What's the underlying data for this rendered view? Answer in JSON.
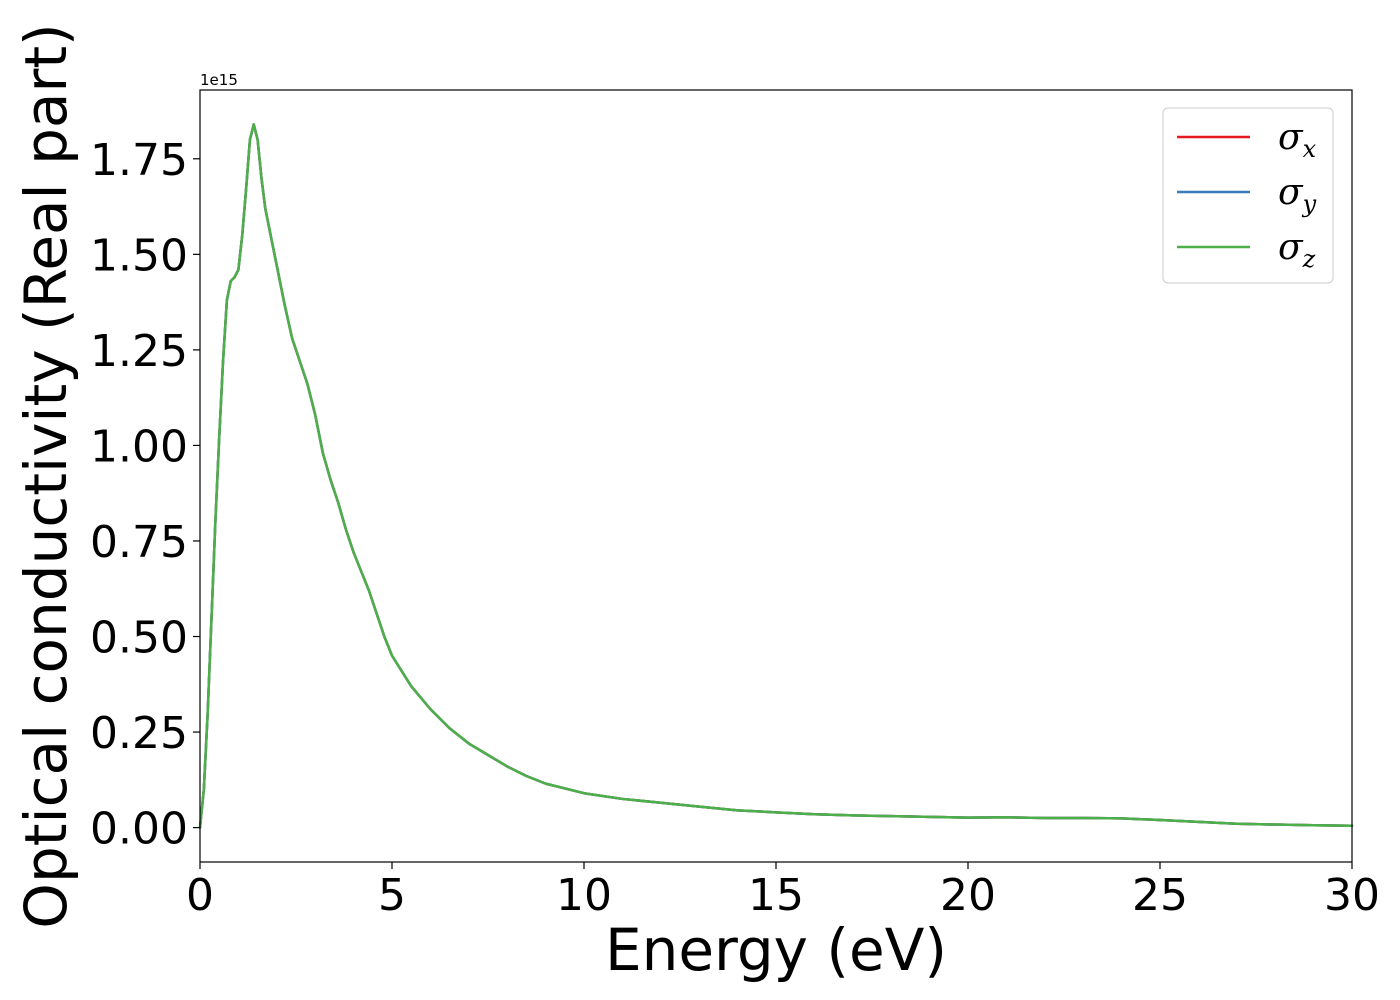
{
  "chart_data": {
    "type": "line",
    "title": "",
    "xlabel": "Energy (eV)",
    "ylabel": "Optical conductivity (Real part)",
    "y_offset_label": "1e15",
    "y_scale_factor": 1000000000000000.0,
    "xlim": [
      0,
      30
    ],
    "ylim": [
      -0.09,
      1.93
    ],
    "xticks": [
      0,
      5,
      10,
      15,
      20,
      25,
      30
    ],
    "xtick_labels": [
      "0",
      "5",
      "10",
      "15",
      "20",
      "25",
      "30"
    ],
    "yticks": [
      0,
      0.25,
      0.5,
      0.75,
      1.0,
      1.25,
      1.5,
      1.75
    ],
    "ytick_labels": [
      "0.00",
      "0.25",
      "0.50",
      "0.75",
      "1.00",
      "1.25",
      "1.50",
      "1.75"
    ],
    "grid": false,
    "legend_position": "top-right",
    "x": [
      0,
      0.1,
      0.2,
      0.3,
      0.4,
      0.5,
      0.6,
      0.7,
      0.8,
      0.9,
      1.0,
      1.1,
      1.2,
      1.3,
      1.4,
      1.5,
      1.6,
      1.7,
      1.8,
      1.9,
      2.0,
      2.2,
      2.4,
      2.6,
      2.8,
      3.0,
      3.2,
      3.4,
      3.6,
      3.8,
      4.0,
      4.2,
      4.4,
      4.6,
      4.8,
      5.0,
      5.5,
      6.0,
      6.5,
      7.0,
      7.5,
      8.0,
      8.5,
      9.0,
      10.0,
      11.0,
      12.0,
      13.0,
      14.0,
      15.0,
      16.0,
      17.0,
      18.0,
      19.0,
      20.0,
      21.0,
      22.0,
      23.0,
      24.0,
      25.0,
      26.0,
      27.0,
      28.0,
      29.0,
      30.0
    ],
    "series": [
      {
        "name": "σx",
        "symbol": "σ",
        "subscript": "x",
        "color": "#e41a1c",
        "values": [
          0.0,
          0.1,
          0.3,
          0.55,
          0.8,
          1.02,
          1.22,
          1.38,
          1.43,
          1.44,
          1.46,
          1.55,
          1.67,
          1.8,
          1.84,
          1.8,
          1.7,
          1.62,
          1.57,
          1.52,
          1.47,
          1.37,
          1.28,
          1.22,
          1.16,
          1.08,
          0.98,
          0.91,
          0.85,
          0.78,
          0.72,
          0.67,
          0.62,
          0.56,
          0.5,
          0.45,
          0.37,
          0.31,
          0.26,
          0.22,
          0.19,
          0.16,
          0.135,
          0.115,
          0.09,
          0.075,
          0.065,
          0.055,
          0.045,
          0.04,
          0.035,
          0.032,
          0.03,
          0.028,
          0.026,
          0.027,
          0.025,
          0.025,
          0.024,
          0.02,
          0.015,
          0.01,
          0.008,
          0.006,
          0.005
        ]
      },
      {
        "name": "σy",
        "symbol": "σ",
        "subscript": "y",
        "color": "#377eb8",
        "values": [
          0.0,
          0.1,
          0.3,
          0.55,
          0.8,
          1.02,
          1.22,
          1.38,
          1.43,
          1.44,
          1.46,
          1.55,
          1.67,
          1.8,
          1.84,
          1.8,
          1.7,
          1.62,
          1.57,
          1.52,
          1.47,
          1.37,
          1.28,
          1.22,
          1.16,
          1.08,
          0.98,
          0.91,
          0.85,
          0.78,
          0.72,
          0.67,
          0.62,
          0.56,
          0.5,
          0.45,
          0.37,
          0.31,
          0.26,
          0.22,
          0.19,
          0.16,
          0.135,
          0.115,
          0.09,
          0.075,
          0.065,
          0.055,
          0.045,
          0.04,
          0.035,
          0.032,
          0.03,
          0.028,
          0.026,
          0.027,
          0.025,
          0.025,
          0.024,
          0.02,
          0.015,
          0.01,
          0.008,
          0.006,
          0.005
        ]
      },
      {
        "name": "σz",
        "symbol": "σ",
        "subscript": "z",
        "color": "#4daf4a",
        "values": [
          0.0,
          0.1,
          0.3,
          0.55,
          0.8,
          1.02,
          1.22,
          1.38,
          1.43,
          1.44,
          1.46,
          1.55,
          1.67,
          1.8,
          1.84,
          1.8,
          1.7,
          1.62,
          1.57,
          1.52,
          1.47,
          1.37,
          1.28,
          1.22,
          1.16,
          1.08,
          0.98,
          0.91,
          0.85,
          0.78,
          0.72,
          0.67,
          0.62,
          0.56,
          0.5,
          0.45,
          0.37,
          0.31,
          0.26,
          0.22,
          0.19,
          0.16,
          0.135,
          0.115,
          0.09,
          0.075,
          0.065,
          0.055,
          0.045,
          0.04,
          0.035,
          0.032,
          0.03,
          0.028,
          0.026,
          0.027,
          0.025,
          0.025,
          0.024,
          0.02,
          0.015,
          0.01,
          0.008,
          0.006,
          0.005
        ]
      }
    ]
  }
}
